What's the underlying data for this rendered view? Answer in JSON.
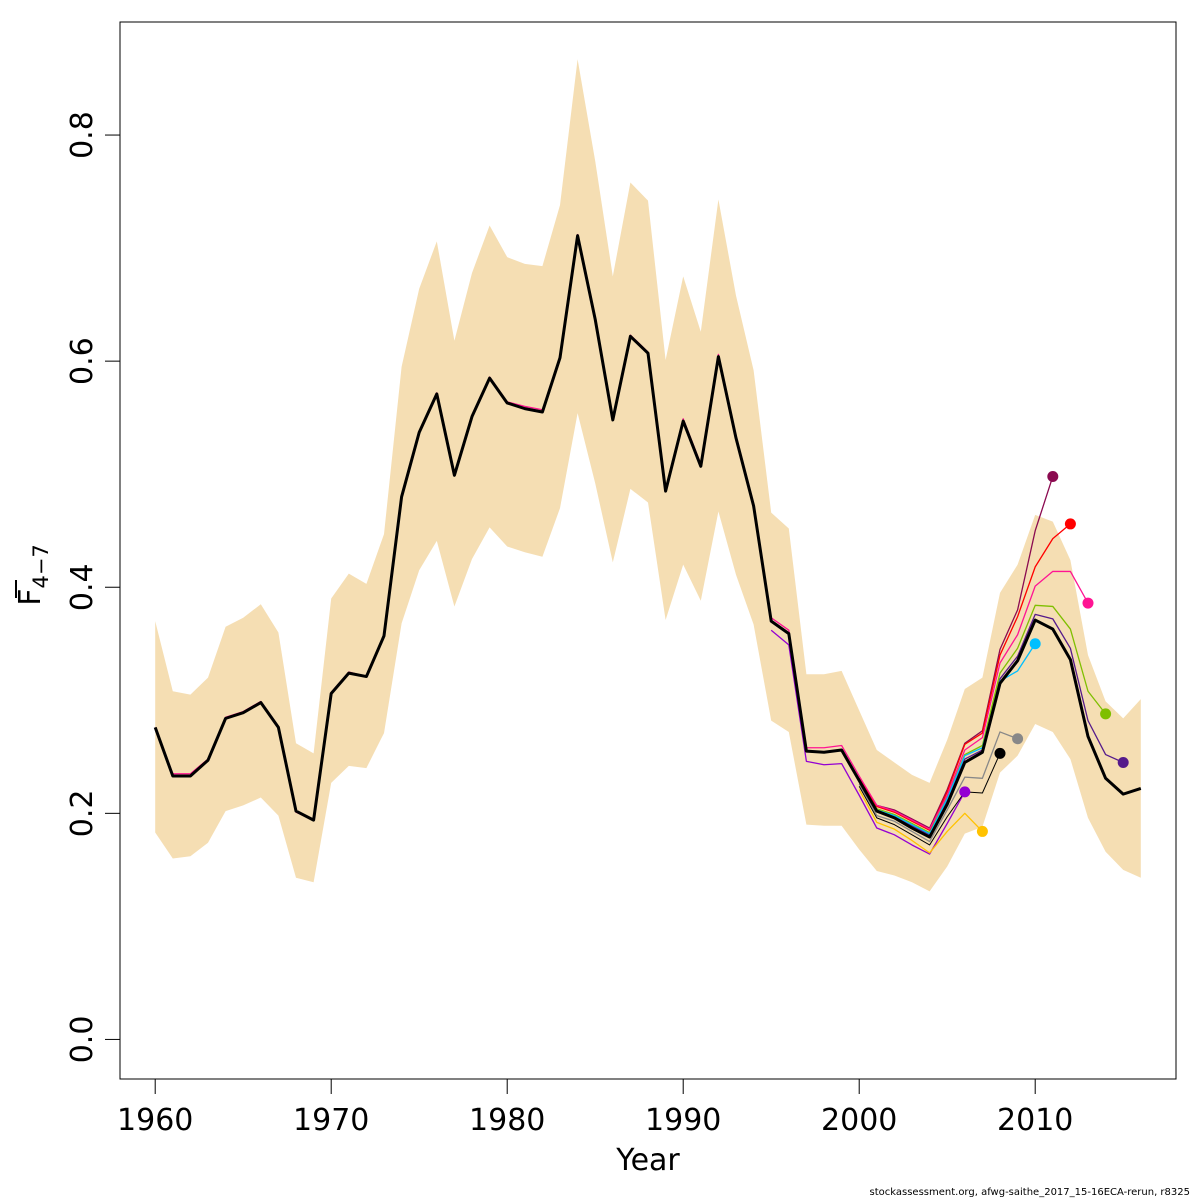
{
  "chart_data": {
    "type": "line",
    "xlabel": "Year",
    "ylabel_main": "F",
    "ylabel_sub": "4−7",
    "xlim": [
      1958,
      2018
    ],
    "ylim": [
      -0.035,
      0.9
    ],
    "x_ticks": [
      1960,
      1970,
      1980,
      1990,
      2000,
      2010
    ],
    "x_tick_labels": [
      "1960",
      "1970",
      "1980",
      "1990",
      "2000",
      "2010"
    ],
    "y_ticks": [
      0.0,
      0.2,
      0.4,
      0.6,
      0.8
    ],
    "y_tick_labels": [
      "0.0",
      "0.2",
      "0.4",
      "0.6",
      "0.8"
    ],
    "band_color": "#f5deb3",
    "years": [
      1960,
      1961,
      1962,
      1963,
      1964,
      1965,
      1966,
      1967,
      1968,
      1969,
      1970,
      1971,
      1972,
      1973,
      1974,
      1975,
      1976,
      1977,
      1978,
      1979,
      1980,
      1981,
      1982,
      1983,
      1984,
      1985,
      1986,
      1987,
      1988,
      1989,
      1990,
      1991,
      1992,
      1993,
      1994,
      1995,
      1996,
      1997,
      1998,
      1999,
      2000,
      2001,
      2002,
      2003,
      2004,
      2005,
      2006,
      2007,
      2008,
      2009,
      2010,
      2011,
      2012,
      2013,
      2014,
      2015,
      2016
    ],
    "band_upper": [
      0.37,
      0.308,
      0.305,
      0.32,
      0.365,
      0.373,
      0.385,
      0.36,
      0.262,
      0.253,
      0.39,
      0.412,
      0.403,
      0.447,
      0.595,
      0.664,
      0.706,
      0.618,
      0.678,
      0.72,
      0.692,
      0.686,
      0.684,
      0.738,
      0.867,
      0.777,
      0.675,
      0.758,
      0.742,
      0.601,
      0.675,
      0.626,
      0.743,
      0.658,
      0.592,
      0.466,
      0.452,
      0.323,
      0.323,
      0.326,
      0.291,
      0.256,
      0.245,
      0.234,
      0.227,
      0.265,
      0.31,
      0.32,
      0.395,
      0.42,
      0.464,
      0.458,
      0.424,
      0.34,
      0.299,
      0.284,
      0.301
    ],
    "band_lower": [
      0.183,
      0.16,
      0.162,
      0.174,
      0.202,
      0.207,
      0.214,
      0.198,
      0.143,
      0.139,
      0.227,
      0.242,
      0.24,
      0.271,
      0.368,
      0.415,
      0.441,
      0.383,
      0.425,
      0.453,
      0.436,
      0.431,
      0.427,
      0.47,
      0.554,
      0.492,
      0.422,
      0.487,
      0.475,
      0.371,
      0.42,
      0.388,
      0.467,
      0.411,
      0.367,
      0.282,
      0.272,
      0.19,
      0.189,
      0.189,
      0.168,
      0.149,
      0.145,
      0.139,
      0.131,
      0.153,
      0.182,
      0.188,
      0.236,
      0.251,
      0.279,
      0.272,
      0.248,
      0.196,
      0.166,
      0.15,
      0.143
    ],
    "series": [
      {
        "color": "#000000",
        "start": 1960,
        "values": [
          0.276,
          0.233,
          0.233,
          0.247,
          0.284,
          0.289,
          0.298,
          0.276,
          0.202,
          0.194,
          0.306,
          0.324,
          0.321,
          0.357,
          0.48,
          0.537,
          0.571,
          0.499,
          0.551,
          0.585,
          0.563,
          0.558,
          0.555,
          0.603,
          0.711,
          0.637,
          0.548,
          0.622,
          0.607,
          0.485,
          0.547,
          0.507,
          0.604,
          0.532,
          0.472,
          0.37,
          0.359,
          0.255,
          0.254,
          0.256,
          0.229,
          0.202,
          0.196,
          0.187,
          0.179,
          0.208,
          0.245,
          0.254,
          0.315,
          0.335,
          0.371,
          0.363,
          0.336,
          0.268,
          0.231,
          0.217,
          0.222
        ],
        "point": false,
        "width": 3
      },
      {
        "color": "#ff1493",
        "start": 1960,
        "values": [
          0.276,
          0.235,
          0.235,
          0.248,
          0.285,
          0.29,
          0.299,
          0.277,
          0.201,
          0.194,
          0.307,
          0.325,
          0.321,
          0.357,
          0.481,
          0.538,
          0.572,
          0.5,
          0.552,
          0.586,
          0.564,
          0.56,
          0.557,
          0.604,
          0.712,
          0.638,
          0.549,
          0.623,
          0.608,
          0.486,
          0.549,
          0.509,
          0.606,
          0.534,
          0.474,
          0.373,
          0.362,
          0.258,
          0.258,
          0.26,
          0.233,
          0.207,
          0.202,
          0.194,
          0.186,
          0.216,
          0.256,
          0.267,
          0.333,
          0.358,
          0.401,
          0.414,
          0.414,
          0.386
        ],
        "point": true,
        "width": 1.3
      },
      {
        "color": "#ff0000",
        "start": 2000,
        "values": [
          0.231,
          0.206,
          0.201,
          0.193,
          0.185,
          0.219,
          0.261,
          0.271,
          0.34,
          0.374,
          0.418,
          0.443,
          0.456
        ],
        "point": true,
        "width": 1.3
      },
      {
        "color": "#8b0a50",
        "start": 2000,
        "values": [
          0.231,
          0.207,
          0.203,
          0.195,
          0.187,
          0.221,
          0.262,
          0.273,
          0.345,
          0.38,
          0.45,
          0.498
        ],
        "point": true,
        "width": 1.3
      },
      {
        "color": "#00bfff",
        "start": 2000,
        "values": [
          0.229,
          0.203,
          0.198,
          0.19,
          0.182,
          0.213,
          0.251,
          0.258,
          0.317,
          0.326,
          0.35
        ],
        "point": true,
        "width": 1.3
      },
      {
        "color": "#7fbf00",
        "start": 2000,
        "values": [
          0.23,
          0.204,
          0.199,
          0.191,
          0.183,
          0.214,
          0.252,
          0.26,
          0.324,
          0.346,
          0.384,
          0.383,
          0.363,
          0.308,
          0.288
        ],
        "point": true,
        "width": 1.3
      },
      {
        "color": "#551a8b",
        "start": 2000,
        "values": [
          0.229,
          0.203,
          0.197,
          0.189,
          0.181,
          0.211,
          0.248,
          0.256,
          0.319,
          0.339,
          0.376,
          0.372,
          0.346,
          0.282,
          0.252,
          0.245
        ],
        "point": true,
        "width": 1.3
      },
      {
        "color": "#888888",
        "start": 2000,
        "values": [
          0.226,
          0.198,
          0.193,
          0.184,
          0.175,
          0.203,
          0.232,
          0.231,
          0.272,
          0.266
        ],
        "point": true,
        "width": 1.3
      },
      {
        "color": "#000000",
        "start": 2000,
        "values": [
          0.224,
          0.196,
          0.19,
          0.181,
          0.172,
          0.197,
          0.219,
          0.218,
          0.253
        ],
        "point": true,
        "width": 1
      },
      {
        "color": "#ffc200",
        "start": 2000,
        "values": [
          0.221,
          0.192,
          0.186,
          0.176,
          0.165,
          0.184,
          0.2,
          0.184
        ],
        "point": true,
        "width": 1.3
      },
      {
        "color": "#9400d3",
        "start": 1995,
        "values": [
          0.362,
          0.349,
          0.246,
          0.243,
          0.244,
          0.216,
          0.187,
          0.181,
          0.172,
          0.164,
          0.191,
          0.219
        ],
        "point": true,
        "width": 1.3
      }
    ]
  },
  "footer": "stockassessment.org, afwg-saithe_2017_15-16ECA-rerun, r8325"
}
